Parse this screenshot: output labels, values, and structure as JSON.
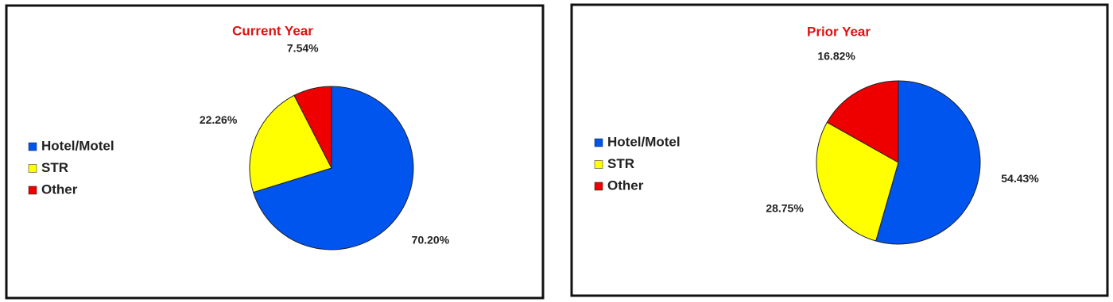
{
  "chart_data": [
    {
      "type": "pie",
      "title": "Current Year",
      "categories": [
        "Hotel/Motel",
        "STR",
        "Other"
      ],
      "values": [
        70.2,
        22.26,
        7.54
      ],
      "value_labels": [
        "70.20%",
        "22.26%",
        "7.54%"
      ],
      "colors": [
        "#0055ee",
        "#ffff00",
        "#ee0000"
      ]
    },
    {
      "type": "pie",
      "title": "Prior Year",
      "categories": [
        "Hotel/Motel",
        "STR",
        "Other"
      ],
      "values": [
        54.43,
        28.75,
        16.82
      ],
      "value_labels": [
        "54.43%",
        "28.75%",
        "16.82%"
      ],
      "colors": [
        "#0055ee",
        "#ffff00",
        "#ee0000"
      ]
    }
  ]
}
